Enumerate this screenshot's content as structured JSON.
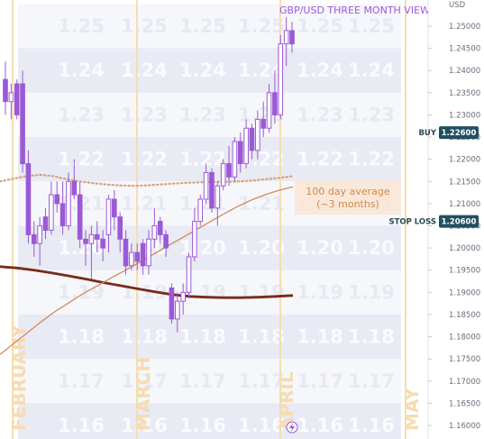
{
  "chart_data": {
    "type": "candlestick",
    "title": "GBP/USD THREE MONTH VIEW",
    "currency_label": "USD",
    "y_axis": {
      "ylim": [
        1.16,
        1.2525
      ],
      "ticks": [
        "1.25000",
        "1.24500",
        "1.24000",
        "1.23500",
        "1.23000",
        "1.22500",
        "1.22000",
        "1.21500",
        "1.21000",
        "1.20500",
        "1.20000",
        "1.19500",
        "1.19000",
        "1.18500",
        "1.18000",
        "1.17500",
        "1.17000",
        "1.16500",
        "1.16000"
      ]
    },
    "background_levels": [
      "1.25",
      "1.24",
      "1.23",
      "1.22",
      "1.21",
      "1.20",
      "1.19",
      "1.18",
      "1.17",
      "1.16"
    ],
    "months": [
      "FEBRUARY",
      "MARCH",
      "APRIL",
      "MAY"
    ],
    "candles": [
      {
        "o": 1.238,
        "h": 1.242,
        "l": 1.23,
        "c": 1.233
      },
      {
        "o": 1.233,
        "h": 1.237,
        "l": 1.229,
        "c": 1.235
      },
      {
        "o": 1.237,
        "h": 1.238,
        "l": 1.229,
        "c": 1.23
      },
      {
        "o": 1.237,
        "h": 1.24,
        "l": 1.217,
        "c": 1.219
      },
      {
        "o": 1.219,
        "h": 1.222,
        "l": 1.201,
        "c": 1.203
      },
      {
        "o": 1.203,
        "h": 1.206,
        "l": 1.198,
        "c": 1.201
      },
      {
        "o": 1.201,
        "h": 1.207,
        "l": 1.196,
        "c": 1.205
      },
      {
        "o": 1.207,
        "h": 1.209,
        "l": 1.202,
        "c": 1.204
      },
      {
        "o": 1.204,
        "h": 1.215,
        "l": 1.203,
        "c": 1.212
      },
      {
        "o": 1.212,
        "h": 1.215,
        "l": 1.208,
        "c": 1.21
      },
      {
        "o": 1.21,
        "h": 1.215,
        "l": 1.203,
        "c": 1.205
      },
      {
        "o": 1.205,
        "h": 1.217,
        "l": 1.204,
        "c": 1.215
      },
      {
        "o": 1.215,
        "h": 1.22,
        "l": 1.211,
        "c": 1.212
      },
      {
        "o": 1.212,
        "h": 1.215,
        "l": 1.2,
        "c": 1.202
      },
      {
        "o": 1.202,
        "h": 1.204,
        "l": 1.196,
        "c": 1.201
      },
      {
        "o": 1.201,
        "h": 1.205,
        "l": 1.193,
        "c": 1.203
      },
      {
        "o": 1.203,
        "h": 1.206,
        "l": 1.199,
        "c": 1.202
      },
      {
        "o": 1.202,
        "h": 1.204,
        "l": 1.197,
        "c": 1.2
      },
      {
        "o": 1.203,
        "h": 1.212,
        "l": 1.199,
        "c": 1.211
      },
      {
        "o": 1.211,
        "h": 1.213,
        "l": 1.204,
        "c": 1.207
      },
      {
        "o": 1.207,
        "h": 1.208,
        "l": 1.199,
        "c": 1.202
      },
      {
        "o": 1.202,
        "h": 1.204,
        "l": 1.194,
        "c": 1.196
      },
      {
        "o": 1.196,
        "h": 1.201,
        "l": 1.195,
        "c": 1.199
      },
      {
        "o": 1.199,
        "h": 1.201,
        "l": 1.195,
        "c": 1.197
      },
      {
        "o": 1.201,
        "h": 1.202,
        "l": 1.194,
        "c": 1.196
      },
      {
        "o": 1.196,
        "h": 1.204,
        "l": 1.194,
        "c": 1.202
      },
      {
        "o": 1.202,
        "h": 1.209,
        "l": 1.2,
        "c": 1.205
      },
      {
        "o": 1.206,
        "h": 1.207,
        "l": 1.201,
        "c": 1.203
      },
      {
        "o": 1.203,
        "h": 1.204,
        "l": 1.198,
        "c": 1.2
      },
      {
        "o": 1.191,
        "h": 1.192,
        "l": 1.183,
        "c": 1.184
      },
      {
        "o": 1.184,
        "h": 1.19,
        "l": 1.181,
        "c": 1.188
      },
      {
        "o": 1.188,
        "h": 1.192,
        "l": 1.185,
        "c": 1.19
      },
      {
        "o": 1.19,
        "h": 1.199,
        "l": 1.189,
        "c": 1.198
      },
      {
        "o": 1.198,
        "h": 1.209,
        "l": 1.197,
        "c": 1.206
      },
      {
        "o": 1.206,
        "h": 1.212,
        "l": 1.205,
        "c": 1.211
      },
      {
        "o": 1.211,
        "h": 1.219,
        "l": 1.21,
        "c": 1.217
      },
      {
        "o": 1.217,
        "h": 1.218,
        "l": 1.208,
        "c": 1.209
      },
      {
        "o": 1.209,
        "h": 1.215,
        "l": 1.205,
        "c": 1.214
      },
      {
        "o": 1.214,
        "h": 1.22,
        "l": 1.213,
        "c": 1.219
      },
      {
        "o": 1.219,
        "h": 1.223,
        "l": 1.214,
        "c": 1.216
      },
      {
        "o": 1.216,
        "h": 1.225,
        "l": 1.215,
        "c": 1.224
      },
      {
        "o": 1.224,
        "h": 1.226,
        "l": 1.217,
        "c": 1.219
      },
      {
        "o": 1.219,
        "h": 1.229,
        "l": 1.218,
        "c": 1.227
      },
      {
        "o": 1.227,
        "h": 1.228,
        "l": 1.22,
        "c": 1.222
      },
      {
        "o": 1.222,
        "h": 1.231,
        "l": 1.22,
        "c": 1.229
      },
      {
        "o": 1.229,
        "h": 1.233,
        "l": 1.225,
        "c": 1.227
      },
      {
        "o": 1.227,
        "h": 1.237,
        "l": 1.226,
        "c": 1.235
      },
      {
        "o": 1.235,
        "h": 1.24,
        "l": 1.228,
        "c": 1.23
      },
      {
        "o": 1.23,
        "h": 1.248,
        "l": 1.229,
        "c": 1.246
      },
      {
        "o": 1.246,
        "h": 1.252,
        "l": 1.241,
        "c": 1.249
      },
      {
        "o": 1.249,
        "h": 1.251,
        "l": 1.244,
        "c": 1.246
      }
    ],
    "ma_100_dotted": [
      1.215,
      1.2156,
      1.2162,
      1.2165,
      1.2162,
      1.2155,
      1.215,
      1.2146,
      1.2143,
      1.2141,
      1.214,
      1.2141,
      1.2143,
      1.2145,
      1.2147,
      1.2148,
      1.2149,
      1.2149,
      1.215,
      1.2152,
      1.2155,
      1.2158,
      1.2162
    ],
    "ma_short_line": [
      1.176,
      1.1785,
      1.181,
      1.1835,
      1.1858,
      1.1878,
      1.1898,
      1.1915,
      1.1933,
      1.195,
      1.1968,
      1.1986,
      1.2004,
      1.2022,
      1.204,
      1.2058,
      1.2076,
      1.2093,
      1.2108,
      1.212,
      1.213,
      1.2138
    ],
    "ma_long_line": [
      1.1958,
      1.1955,
      1.195,
      1.1944,
      1.1937,
      1.193,
      1.1922,
      1.1915,
      1.1908,
      1.1901,
      1.1895,
      1.1891,
      1.1889,
      1.1888,
      1.1888,
      1.1889,
      1.1891,
      1.1893
    ],
    "levels": [
      {
        "label": "BUY",
        "value": "1.22600"
      },
      {
        "label": "STOP LOSS",
        "value": "1.20600"
      }
    ],
    "annotation": {
      "line1": "100 day average",
      "line2": "(~3 months)"
    },
    "colors": {
      "candle": "#9b59d6",
      "ma_dotted": "#d9a47c",
      "ma_short": "#d48a5a",
      "ma_long": "#7a2a1a",
      "level_tag": "#205060",
      "month_line": "#f6dcb0",
      "band": "#e8eaf4"
    }
  }
}
